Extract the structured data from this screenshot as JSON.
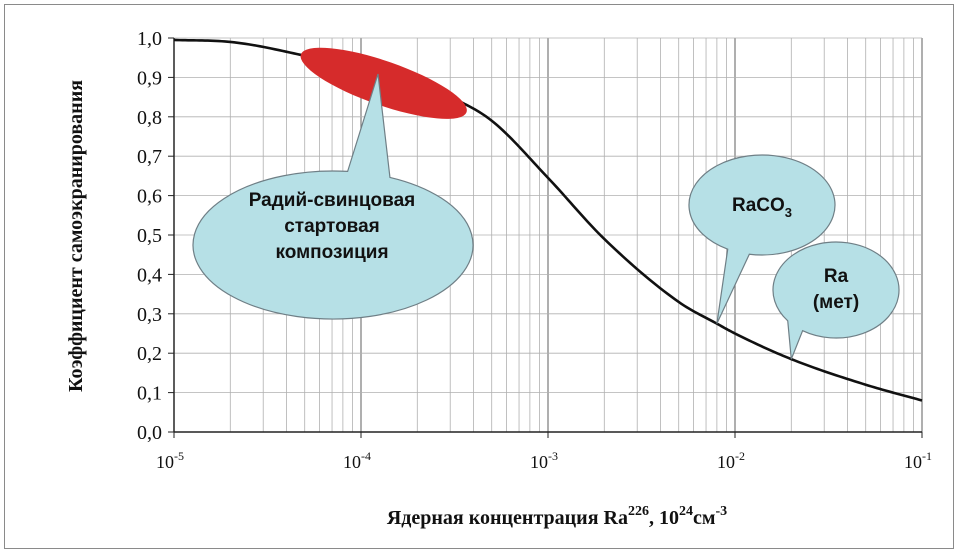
{
  "chart_data": {
    "type": "line",
    "xscale": "log",
    "xlim": [
      1e-05,
      0.1
    ],
    "ylim": [
      0,
      1
    ],
    "grid": true,
    "xlabel": {
      "main": "Ядерная концентрация Ra",
      "sup1": "226",
      "mid": ", 10",
      "sup2": "24",
      "unit": "см",
      "sup3": "-3"
    },
    "ylabel": "Коэффициент самоэкранирования",
    "ytick_labels": [
      "0,0",
      "0,1",
      "0,2",
      "0,3",
      "0,4",
      "0,5",
      "0,6",
      "0,7",
      "0,8",
      "0,9",
      "1,0"
    ],
    "xtick_labels": [
      {
        "base": "10",
        "exp": "-5"
      },
      {
        "base": "10",
        "exp": "-4"
      },
      {
        "base": "10",
        "exp": "-3"
      },
      {
        "base": "10",
        "exp": "-2"
      },
      {
        "base": "10",
        "exp": "-1"
      }
    ],
    "series": [
      {
        "x": [
          1e-05,
          2e-05,
          5e-05,
          0.0001,
          0.0002,
          0.0003,
          0.0005,
          0.001,
          0.002,
          0.005,
          0.008,
          0.01,
          0.02,
          0.05,
          0.1
        ],
        "y": [
          0.995,
          0.99,
          0.955,
          0.92,
          0.88,
          0.85,
          0.79,
          0.645,
          0.49,
          0.33,
          0.275,
          0.25,
          0.185,
          0.12,
          0.08
        ]
      }
    ],
    "annotations": {
      "region": {
        "x_from": 5e-05,
        "x_to": 0.00035,
        "y_from": 0.955,
        "y_to": 0.815,
        "color": "#d62b2b"
      },
      "bubble_main": {
        "lines": [
          "Радий-свинцовая",
          "стартовая",
          "композиция"
        ]
      },
      "bubble_raco3": {
        "text": "RaCO",
        "sub": "3",
        "x": 0.008,
        "y": 0.275
      },
      "bubble_ra": {
        "lines": [
          "Ra",
          "(мет)"
        ],
        "x": 0.02,
        "y": 0.185
      }
    }
  },
  "colors": {
    "curve": "#111111",
    "grid": "#b0b0b0",
    "bubble_fill": "#b6e0e6",
    "bubble_stroke": "#6f7f86",
    "highlight": "#d62b2b"
  }
}
